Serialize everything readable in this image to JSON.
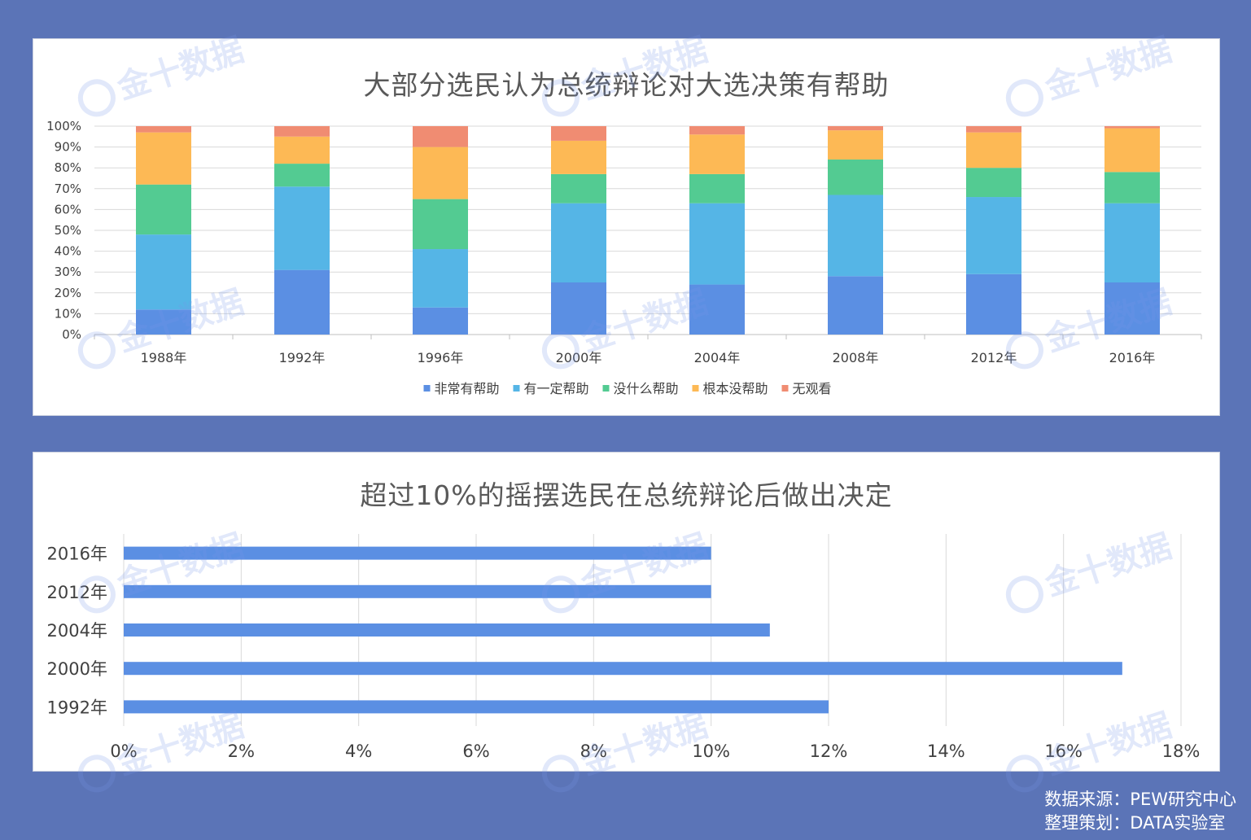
{
  "watermark_text": "金十数据",
  "source": {
    "line1": "数据来源：PEW研究中心",
    "line2": "整理策划：DATA实验室"
  },
  "chart_data": [
    {
      "type": "bar",
      "stacked": true,
      "title": "大部分选民认为总统辩论对大选决策有帮助",
      "categories": [
        "1988年",
        "1992年",
        "1996年",
        "2000年",
        "2004年",
        "2008年",
        "2012年",
        "2016年"
      ],
      "ylim": [
        0,
        100
      ],
      "yticks": [
        "0%",
        "10%",
        "20%",
        "30%",
        "40%",
        "50%",
        "60%",
        "70%",
        "80%",
        "90%",
        "100%"
      ],
      "grid": true,
      "legend_position": "bottom",
      "series": [
        {
          "name": "非常有帮助",
          "color": "#5b8fe3",
          "values": [
            12,
            31,
            13,
            25,
            24,
            28,
            29,
            25
          ]
        },
        {
          "name": "有一定帮助",
          "color": "#55b5e6",
          "values": [
            36,
            40,
            28,
            38,
            39,
            39,
            37,
            38
          ]
        },
        {
          "name": "没什么帮助",
          "color": "#53cb92",
          "values": [
            24,
            11,
            24,
            14,
            14,
            17,
            14,
            15
          ]
        },
        {
          "name": "根本没帮助",
          "color": "#fdb955",
          "values": [
            25,
            13,
            25,
            16,
            19,
            14,
            17,
            21
          ]
        },
        {
          "name": "无观看",
          "color": "#f08c72",
          "values": [
            3,
            5,
            10,
            7,
            4,
            2,
            3,
            1
          ]
        }
      ]
    },
    {
      "type": "bar",
      "orientation": "horizontal",
      "title": "超过10%的摇摆选民在总统辩论后做出决定",
      "categories": [
        "2016年",
        "2012年",
        "2004年",
        "2000年",
        "1992年"
      ],
      "values": [
        10,
        10,
        11,
        17,
        12
      ],
      "color": "#5b8fe3",
      "xlim": [
        0,
        18
      ],
      "xticks": [
        "0%",
        "2%",
        "4%",
        "6%",
        "8%",
        "10%",
        "12%",
        "14%",
        "16%",
        "18%"
      ],
      "grid": true
    }
  ]
}
